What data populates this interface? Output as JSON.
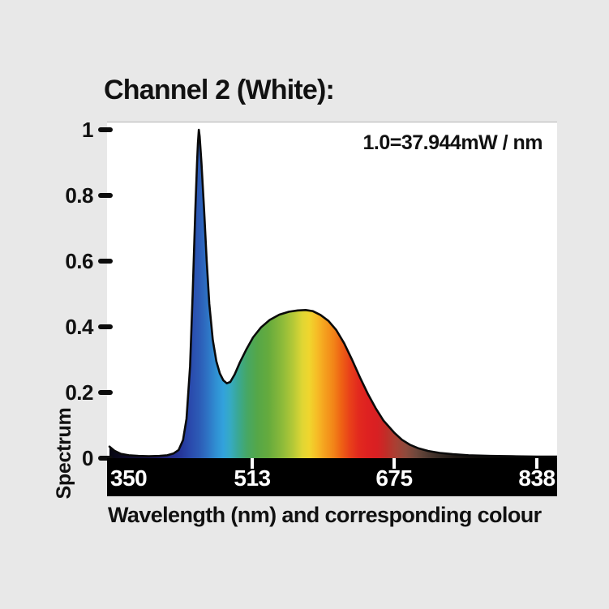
{
  "page": {
    "background": "#e8e8e8",
    "plot_background": "#ffffff",
    "axis_bar_color": "#000000",
    "text_color": "#111111"
  },
  "title": "Channel 2 (White):",
  "plot": {
    "annotation": "1.0=37.944mW / nm"
  },
  "y_axis": {
    "title": "Spectrum",
    "ticks": [
      {
        "label": "1",
        "value": 1.0
      },
      {
        "label": "0.8",
        "value": 0.8
      },
      {
        "label": "0.6",
        "value": 0.6
      },
      {
        "label": "0.4",
        "value": 0.4
      },
      {
        "label": "0.2",
        "value": 0.2
      },
      {
        "label": "0",
        "value": 0.0
      }
    ]
  },
  "x_axis": {
    "title": "Wavelength (nm) and corresponding colour",
    "ticks": [
      {
        "label": "350",
        "nm": 350,
        "tick_mark": false,
        "align": "left"
      },
      {
        "label": "513",
        "nm": 513,
        "tick_mark": true,
        "align": "center"
      },
      {
        "label": "675",
        "nm": 675,
        "tick_mark": true,
        "align": "center"
      },
      {
        "label": "838",
        "nm": 838,
        "tick_mark": true,
        "align": "center"
      }
    ]
  },
  "chart_data": {
    "type": "area",
    "title": "Channel 2 (White):",
    "xlabel": "Wavelength (nm) and corresponding colour",
    "ylabel": "Spectrum",
    "annotation": "1.0=37.944mW / nm",
    "scale_note": "1.0 = 37.944 mW/nm",
    "xlim": [
      350,
      861
    ],
    "ylim": [
      0,
      1
    ],
    "x_tick_values": [
      350,
      513,
      675,
      838
    ],
    "y_tick_values": [
      0,
      0.2,
      0.4,
      0.6,
      0.8,
      1
    ],
    "grid": false,
    "legend": "none",
    "curve_stroke": "#0a0a0a",
    "fill": "spectral-wavelength-gradient",
    "points": [
      [
        350,
        0.035
      ],
      [
        356,
        0.022
      ],
      [
        363,
        0.013
      ],
      [
        372,
        0.009
      ],
      [
        383,
        0.007
      ],
      [
        395,
        0.006
      ],
      [
        407,
        0.007
      ],
      [
        416,
        0.009
      ],
      [
        423,
        0.014
      ],
      [
        429,
        0.025
      ],
      [
        434,
        0.055
      ],
      [
        438,
        0.12
      ],
      [
        442,
        0.28
      ],
      [
        445,
        0.5
      ],
      [
        448,
        0.75
      ],
      [
        450,
        0.9
      ],
      [
        451,
        0.96
      ],
      [
        452,
        1.0
      ],
      [
        453,
        0.98
      ],
      [
        455,
        0.9
      ],
      [
        458,
        0.76
      ],
      [
        461,
        0.6
      ],
      [
        464,
        0.47
      ],
      [
        468,
        0.36
      ],
      [
        472,
        0.295
      ],
      [
        476,
        0.258
      ],
      [
        480,
        0.237
      ],
      [
        484,
        0.228
      ],
      [
        488,
        0.232
      ],
      [
        493,
        0.255
      ],
      [
        499,
        0.292
      ],
      [
        506,
        0.33
      ],
      [
        514,
        0.368
      ],
      [
        523,
        0.398
      ],
      [
        533,
        0.421
      ],
      [
        544,
        0.437
      ],
      [
        555,
        0.446
      ],
      [
        565,
        0.45
      ],
      [
        574,
        0.451
      ],
      [
        582,
        0.448
      ],
      [
        591,
        0.436
      ],
      [
        600,
        0.418
      ],
      [
        609,
        0.39
      ],
      [
        618,
        0.35
      ],
      [
        627,
        0.3
      ],
      [
        636,
        0.246
      ],
      [
        645,
        0.196
      ],
      [
        654,
        0.152
      ],
      [
        663,
        0.114
      ],
      [
        675,
        0.078
      ],
      [
        684,
        0.056
      ],
      [
        693,
        0.041
      ],
      [
        703,
        0.03
      ],
      [
        714,
        0.022
      ],
      [
        727,
        0.016
      ],
      [
        742,
        0.012
      ],
      [
        760,
        0.009
      ],
      [
        785,
        0.007
      ],
      [
        810,
        0.006
      ],
      [
        838,
        0.005
      ],
      [
        861,
        0.005
      ]
    ],
    "spectral_gradient_stops": [
      [
        350,
        "#060610"
      ],
      [
        385,
        "#140f3c"
      ],
      [
        405,
        "#1e1a66"
      ],
      [
        420,
        "#232a85"
      ],
      [
        432,
        "#25379b"
      ],
      [
        443,
        "#2a4bad"
      ],
      [
        452,
        "#2c5ab5"
      ],
      [
        462,
        "#2e73c4"
      ],
      [
        472,
        "#3090d3"
      ],
      [
        480,
        "#32a2dc"
      ],
      [
        488,
        "#36aac3"
      ],
      [
        497,
        "#3aa894"
      ],
      [
        507,
        "#46a765"
      ],
      [
        519,
        "#55a748"
      ],
      [
        532,
        "#66ab3d"
      ],
      [
        547,
        "#8cba3a"
      ],
      [
        560,
        "#b5c937"
      ],
      [
        570,
        "#dfd634"
      ],
      [
        578,
        "#f0d62e"
      ],
      [
        587,
        "#f6bc26"
      ],
      [
        596,
        "#f5a01e"
      ],
      [
        606,
        "#f28418"
      ],
      [
        615,
        "#ee6114"
      ],
      [
        624,
        "#e94219"
      ],
      [
        634,
        "#e22a1e"
      ],
      [
        645,
        "#de2121"
      ],
      [
        656,
        "#d82023"
      ],
      [
        666,
        "#c12d28"
      ],
      [
        676,
        "#ab3f33"
      ],
      [
        688,
        "#8f4a3c"
      ],
      [
        700,
        "#6f483c"
      ],
      [
        713,
        "#503a31"
      ],
      [
        728,
        "#332822"
      ],
      [
        745,
        "#1d1713"
      ],
      [
        770,
        "#0d0b09"
      ],
      [
        800,
        "#040404"
      ],
      [
        838,
        "#000000"
      ]
    ]
  }
}
